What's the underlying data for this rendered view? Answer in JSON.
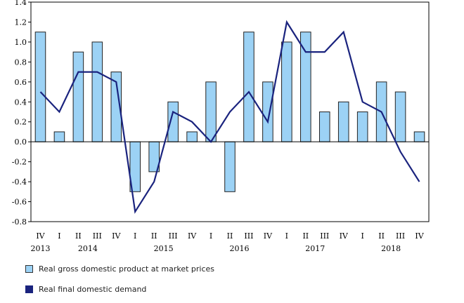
{
  "chart_data": {
    "type": "bar+line",
    "title": "",
    "xlabel": "",
    "ylabel": "",
    "ylim": [
      -0.8,
      1.4
    ],
    "yticks": [
      -0.8,
      -0.6,
      -0.4,
      -0.2,
      0.0,
      0.2,
      0.4,
      0.6,
      0.8,
      1.0,
      1.2,
      1.4
    ],
    "ytick_labels": [
      "-0.8",
      "-0.6",
      "-0.4",
      "-0.2",
      "0.0",
      "0.2",
      "0.4",
      "0.6",
      "0.8",
      "1.0",
      "1.2",
      "1.4"
    ],
    "quarters": [
      "IV",
      "I",
      "II",
      "III",
      "IV",
      "I",
      "II",
      "III",
      "IV",
      "I",
      "II",
      "III",
      "IV",
      "I",
      "II",
      "III",
      "IV",
      "I",
      "II",
      "III",
      "IV"
    ],
    "years": [
      {
        "label": "2013",
        "index": 0
      },
      {
        "label": "2014",
        "index": 2.5
      },
      {
        "label": "2015",
        "index": 6.5
      },
      {
        "label": "2016",
        "index": 10.5
      },
      {
        "label": "2017",
        "index": 14.5
      },
      {
        "label": "2018",
        "index": 18.5
      }
    ],
    "series": [
      {
        "name": "Real gross domestic product at market prices",
        "kind": "bar",
        "color": "#9cd2f5",
        "values": [
          1.1,
          0.1,
          0.9,
          1.0,
          0.7,
          -0.5,
          -0.3,
          0.4,
          0.1,
          0.6,
          -0.5,
          1.1,
          0.6,
          1.0,
          1.1,
          0.3,
          0.4,
          0.3,
          0.6,
          0.5,
          0.1
        ]
      },
      {
        "name": "Real final domestic demand",
        "kind": "line",
        "color": "#1a237e",
        "values": [
          0.5,
          0.3,
          0.7,
          0.7,
          0.6,
          -0.7,
          -0.4,
          0.3,
          0.2,
          0.0,
          0.3,
          0.5,
          0.2,
          1.2,
          0.9,
          0.9,
          1.1,
          0.4,
          0.3,
          -0.1,
          -0.4
        ]
      }
    ],
    "legend": [
      "Real gross domestic product at market prices",
      "Real final domestic demand"
    ],
    "legend_position": "bottom-left"
  }
}
